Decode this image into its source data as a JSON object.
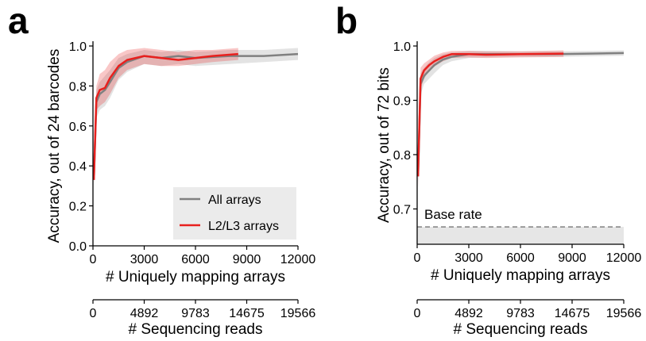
{
  "chart_data": [
    {
      "panel_label": "a",
      "type": "line",
      "ylabel": "Accuracy, out of 24 barcodes",
      "xlabel": "# Uniquely mapping arrays",
      "xlim": [
        0,
        12000
      ],
      "ylim": [
        0,
        1.0
      ],
      "xticks": [
        "0",
        "3000",
        "6000",
        "9000",
        "12000"
      ],
      "yticks": [
        "0.0",
        "0.2",
        "0.4",
        "0.6",
        "0.8",
        "1.0"
      ],
      "secondary_xlabel": "# Sequencing reads",
      "secondary_xticks": [
        "0",
        "4892",
        "9783",
        "14675",
        "19566"
      ],
      "legend": {
        "position": "lower-right",
        "entries": [
          "All arrays",
          "L2/L3 arrays"
        ]
      },
      "series": [
        {
          "name": "All arrays",
          "color": "#808080",
          "x": [
            50,
            200,
            400,
            700,
            1000,
            1500,
            2000,
            3000,
            4000,
            5000,
            6000,
            8000,
            10000,
            12000
          ],
          "y": [
            0.33,
            0.72,
            0.76,
            0.78,
            0.82,
            0.89,
            0.92,
            0.95,
            0.94,
            0.95,
            0.94,
            0.95,
            0.95,
            0.96
          ],
          "lower": [
            0.3,
            0.64,
            0.68,
            0.7,
            0.74,
            0.83,
            0.87,
            0.91,
            0.9,
            0.91,
            0.9,
            0.91,
            0.92,
            0.93
          ],
          "upper": [
            0.36,
            0.78,
            0.82,
            0.85,
            0.88,
            0.94,
            0.96,
            0.98,
            0.97,
            0.98,
            0.97,
            0.98,
            0.98,
            0.99
          ]
        },
        {
          "name": "L2/L3 arrays",
          "color": "#e8201e",
          "x": [
            50,
            200,
            400,
            700,
            1000,
            1500,
            2000,
            3000,
            4000,
            5000,
            6000,
            7000,
            8500
          ],
          "y": [
            0.33,
            0.74,
            0.78,
            0.79,
            0.84,
            0.9,
            0.93,
            0.95,
            0.94,
            0.93,
            0.94,
            0.95,
            0.96
          ],
          "lower": [
            0.3,
            0.68,
            0.7,
            0.72,
            0.76,
            0.84,
            0.88,
            0.91,
            0.9,
            0.9,
            0.91,
            0.92,
            0.93
          ],
          "upper": [
            0.36,
            0.8,
            0.86,
            0.88,
            0.92,
            0.96,
            0.98,
            0.99,
            0.98,
            0.97,
            0.98,
            0.98,
            0.99
          ]
        }
      ]
    },
    {
      "panel_label": "b",
      "type": "line",
      "ylabel": "Accuracy, out of 72 bits",
      "xlabel": "# Uniquely mapping arrays",
      "xlim": [
        0,
        12000
      ],
      "ylim": [
        0.635,
        1.0
      ],
      "xticks": [
        "0",
        "3000",
        "6000",
        "9000",
        "12000"
      ],
      "yticks": [
        "0.7",
        "0.8",
        "0.9",
        "1.0"
      ],
      "secondary_xlabel": "# Sequencing reads",
      "secondary_xticks": [
        "0",
        "4892",
        "9783",
        "14675",
        "19566"
      ],
      "base_rate": {
        "label": "Base rate",
        "value": 0.667,
        "color": "#808080"
      },
      "series": [
        {
          "name": "All arrays",
          "color": "#808080",
          "x": [
            50,
            200,
            400,
            700,
            1000,
            1500,
            2000,
            3000,
            4000,
            6000,
            8000,
            10000,
            12000
          ],
          "y": [
            0.76,
            0.93,
            0.945,
            0.955,
            0.965,
            0.975,
            0.98,
            0.985,
            0.985,
            0.985,
            0.985,
            0.986,
            0.987
          ],
          "lower": [
            0.74,
            0.91,
            0.93,
            0.94,
            0.95,
            0.965,
            0.972,
            0.978,
            0.979,
            0.98,
            0.98,
            0.981,
            0.982
          ],
          "upper": [
            0.78,
            0.95,
            0.96,
            0.97,
            0.978,
            0.985,
            0.988,
            0.991,
            0.991,
            0.99,
            0.99,
            0.991,
            0.992
          ]
        },
        {
          "name": "L2/L3 arrays",
          "color": "#e8201e",
          "x": [
            50,
            200,
            400,
            700,
            1000,
            1500,
            2000,
            3000,
            4000,
            6000,
            8500
          ],
          "y": [
            0.76,
            0.94,
            0.955,
            0.965,
            0.972,
            0.98,
            0.985,
            0.985,
            0.984,
            0.985,
            0.986
          ],
          "lower": [
            0.74,
            0.92,
            0.94,
            0.955,
            0.962,
            0.972,
            0.978,
            0.979,
            0.978,
            0.979,
            0.98
          ],
          "upper": [
            0.78,
            0.96,
            0.968,
            0.975,
            0.982,
            0.988,
            0.991,
            0.991,
            0.99,
            0.99,
            0.992
          ]
        }
      ]
    }
  ]
}
